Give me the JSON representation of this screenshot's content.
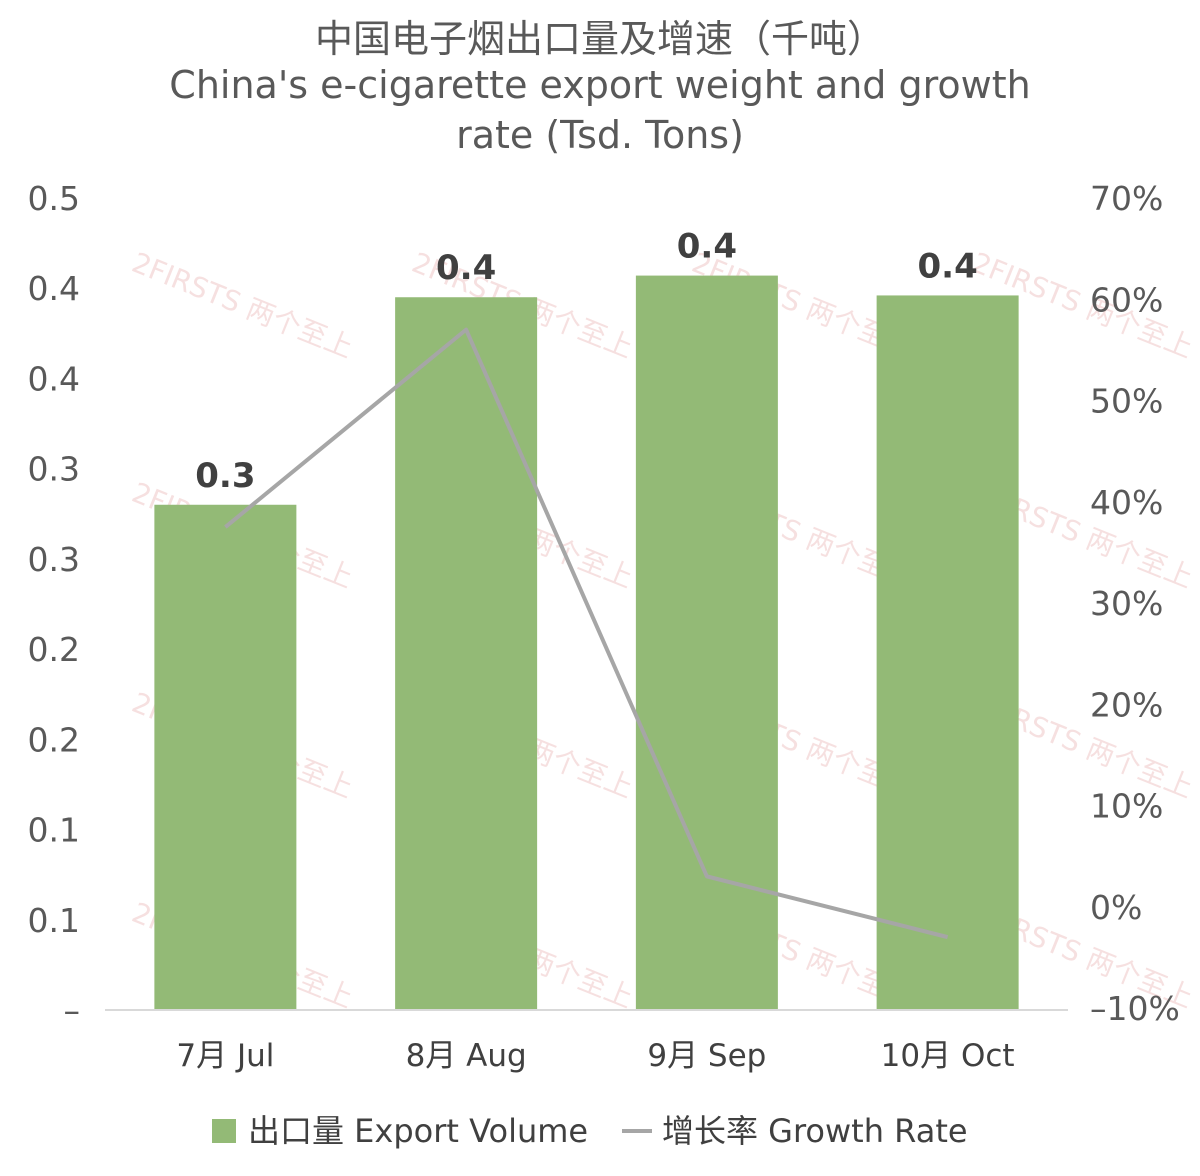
{
  "chart_data": {
    "type": "bar",
    "title": "中国电子烟出口量及增速（千吨）",
    "subtitle": "China's e-cigarette export weight and growth rate (Tsd. Tons)",
    "categories": [
      "7月 Jul",
      "8月 Aug",
      "9月 Sep",
      "10月 Oct"
    ],
    "series": [
      {
        "name": "出口量 Export Volume",
        "type": "bar",
        "axis": "left",
        "color": "#93ba76",
        "values": [
          0.28,
          0.395,
          0.407,
          0.396
        ],
        "data_labels": [
          "0.3",
          "0.4",
          "0.4",
          "0.4"
        ]
      },
      {
        "name": "增长率 Growth Rate",
        "type": "line",
        "axis": "right",
        "color": "#a6a6a6",
        "values": [
          37.5,
          57.0,
          3.0,
          -3.0
        ]
      }
    ],
    "y_left": {
      "ylim": [
        0,
        0.45
      ],
      "tick_values": [
        0,
        0.05,
        0.1,
        0.15,
        0.2,
        0.25,
        0.3,
        0.35,
        0.4,
        0.45
      ],
      "tick_labels": [
        "–",
        "0.1",
        "0.1",
        "0.2",
        "0.2",
        "0.3",
        "0.3",
        "0.4",
        "0.4",
        "0.5"
      ]
    },
    "y_right": {
      "ylim": [
        -10,
        70
      ],
      "tick_values": [
        -10,
        0,
        10,
        20,
        30,
        40,
        50,
        60,
        70
      ],
      "tick_labels": [
        "–10%",
        "0%",
        "10%",
        "20%",
        "30%",
        "40%",
        "50%",
        "60%",
        "70%"
      ]
    },
    "grid": false,
    "legend_position": "bottom",
    "watermark": "2FIRSTS 两个至上"
  }
}
